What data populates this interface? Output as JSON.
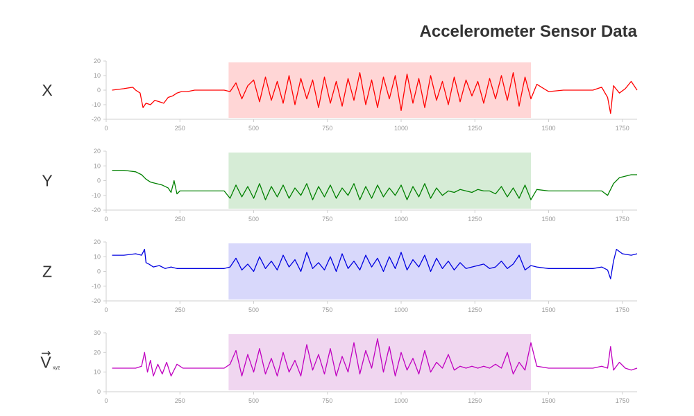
{
  "title": "Accelerometer Sensor Data",
  "chart_data": [
    {
      "type": "line",
      "ylabel": "X",
      "color": "#ff0000",
      "highlight_color": "#ffd6d6",
      "highlight_x": [
        415,
        1440
      ],
      "xlim": [
        0,
        1800
      ],
      "ylim": [
        -20,
        20
      ],
      "xticks": [
        0,
        250,
        500,
        750,
        1000,
        1250,
        1500,
        1750
      ],
      "yticks": [
        20,
        10,
        0,
        -10,
        -20
      ],
      "series": [
        {
          "x": [
            20,
            60,
            90,
            100,
            115,
            125,
            135,
            150,
            165,
            180,
            195,
            210,
            225,
            240,
            255,
            275,
            300,
            350,
            400,
            420,
            440,
            460,
            480,
            500,
            520,
            540,
            560,
            580,
            600,
            620,
            640,
            660,
            680,
            700,
            720,
            740,
            760,
            780,
            800,
            820,
            840,
            860,
            880,
            900,
            920,
            940,
            960,
            980,
            1000,
            1020,
            1040,
            1060,
            1080,
            1100,
            1120,
            1140,
            1160,
            1180,
            1200,
            1220,
            1240,
            1260,
            1280,
            1300,
            1320,
            1340,
            1360,
            1380,
            1400,
            1420,
            1440,
            1460,
            1500,
            1550,
            1600,
            1650,
            1680,
            1700,
            1710,
            1720,
            1740,
            1760,
            1780,
            1800
          ],
          "values": [
            0,
            1,
            2,
            0,
            -2,
            -12,
            -9,
            -10,
            -7,
            -8,
            -9,
            -5,
            -4,
            -2,
            -1,
            -1,
            0,
            0,
            0,
            -1,
            5,
            -6,
            3,
            7,
            -8,
            9,
            -7,
            6,
            -9,
            10,
            -10,
            8,
            -6,
            7,
            -12,
            9,
            -9,
            6,
            -11,
            8,
            -7,
            12,
            -10,
            7,
            -12,
            9,
            -6,
            10,
            -14,
            11,
            -9,
            8,
            -12,
            10,
            -7,
            6,
            -10,
            9,
            -8,
            7,
            -4,
            6,
            -9,
            8,
            -6,
            10,
            -7,
            12,
            -11,
            9,
            -6,
            4,
            -1,
            0,
            0,
            0,
            2,
            -5,
            -16,
            3,
            -2,
            1,
            6,
            0
          ]
        }
      ]
    },
    {
      "type": "line",
      "ylabel": "Y",
      "color": "#008000",
      "highlight_color": "#d6ecd6",
      "highlight_x": [
        415,
        1440
      ],
      "xlim": [
        0,
        1800
      ],
      "ylim": [
        -20,
        20
      ],
      "xticks": [
        0,
        250,
        500,
        750,
        1000,
        1250,
        1500,
        1750
      ],
      "yticks": [
        20,
        10,
        0,
        -10,
        -20
      ],
      "series": [
        {
          "x": [
            20,
            60,
            100,
            120,
            135,
            150,
            170,
            190,
            210,
            220,
            230,
            240,
            250,
            275,
            300,
            350,
            400,
            420,
            440,
            460,
            480,
            500,
            520,
            540,
            560,
            580,
            600,
            620,
            640,
            660,
            680,
            700,
            720,
            740,
            760,
            780,
            800,
            820,
            840,
            860,
            880,
            900,
            920,
            940,
            960,
            980,
            1000,
            1020,
            1040,
            1060,
            1080,
            1100,
            1120,
            1140,
            1160,
            1180,
            1200,
            1220,
            1240,
            1260,
            1280,
            1300,
            1320,
            1340,
            1360,
            1380,
            1400,
            1420,
            1440,
            1460,
            1500,
            1550,
            1600,
            1650,
            1680,
            1700,
            1720,
            1740,
            1760,
            1780,
            1800
          ],
          "values": [
            7,
            7,
            6,
            4,
            1,
            -1,
            -2,
            -3,
            -5,
            -8,
            0,
            -9,
            -7,
            -7,
            -7,
            -7,
            -7,
            -12,
            -3,
            -11,
            -4,
            -12,
            -2,
            -13,
            -4,
            -11,
            -3,
            -12,
            -5,
            -10,
            -2,
            -13,
            -4,
            -11,
            -3,
            -12,
            -5,
            -10,
            -2,
            -13,
            -4,
            -12,
            -3,
            -11,
            -5,
            -10,
            -3,
            -13,
            -4,
            -11,
            -2,
            -12,
            -5,
            -10,
            -7,
            -8,
            -6,
            -7,
            -8,
            -6,
            -7,
            -7,
            -9,
            -4,
            -11,
            -5,
            -12,
            -3,
            -13,
            -6,
            -7,
            -7,
            -7,
            -7,
            -7,
            -10,
            -2,
            2,
            3,
            4,
            4
          ]
        }
      ]
    },
    {
      "type": "line",
      "ylabel": "Z",
      "color": "#0000e0",
      "highlight_color": "#d8d8fb",
      "highlight_x": [
        415,
        1440
      ],
      "xlim": [
        0,
        1800
      ],
      "ylim": [
        -20,
        20
      ],
      "xticks": [
        0,
        250,
        500,
        750,
        1000,
        1250,
        1500,
        1750
      ],
      "yticks": [
        20,
        10,
        0,
        -10,
        -20
      ],
      "series": [
        {
          "x": [
            20,
            60,
            100,
            120,
            130,
            135,
            145,
            160,
            180,
            200,
            220,
            240,
            260,
            300,
            350,
            400,
            420,
            440,
            460,
            480,
            500,
            520,
            540,
            560,
            580,
            600,
            620,
            640,
            660,
            680,
            700,
            720,
            740,
            760,
            780,
            800,
            820,
            840,
            860,
            880,
            900,
            920,
            940,
            960,
            980,
            1000,
            1020,
            1040,
            1060,
            1080,
            1100,
            1120,
            1140,
            1160,
            1180,
            1200,
            1220,
            1240,
            1260,
            1280,
            1300,
            1320,
            1340,
            1360,
            1380,
            1400,
            1420,
            1440,
            1460,
            1500,
            1550,
            1600,
            1650,
            1680,
            1700,
            1710,
            1720,
            1730,
            1750,
            1780,
            1800
          ],
          "values": [
            11,
            11,
            12,
            11,
            15,
            6,
            5,
            3,
            4,
            2,
            3,
            2,
            2,
            2,
            2,
            2,
            3,
            9,
            1,
            5,
            0,
            10,
            2,
            7,
            1,
            11,
            3,
            8,
            0,
            13,
            2,
            6,
            1,
            10,
            0,
            12,
            2,
            7,
            1,
            11,
            3,
            9,
            0,
            10,
            2,
            13,
            1,
            8,
            3,
            11,
            0,
            9,
            2,
            7,
            1,
            6,
            2,
            3,
            4,
            5,
            2,
            3,
            7,
            2,
            5,
            11,
            1,
            4,
            3,
            2,
            2,
            2,
            2,
            3,
            1,
            -5,
            7,
            15,
            12,
            11,
            12
          ]
        }
      ]
    },
    {
      "type": "line",
      "ylabel": "V",
      "ylabel_sub": "xyz",
      "color": "#c000c0",
      "highlight_color": "#f0d6f0",
      "highlight_x": [
        415,
        1440
      ],
      "xlim": [
        0,
        1800
      ],
      "ylim": [
        0,
        30
      ],
      "xticks": [
        0,
        250,
        500,
        750,
        1000,
        1250,
        1500,
        1750
      ],
      "yticks": [
        30,
        20,
        10,
        0
      ],
      "series": [
        {
          "x": [
            20,
            60,
            100,
            120,
            130,
            140,
            150,
            160,
            175,
            190,
            205,
            220,
            240,
            260,
            300,
            350,
            400,
            420,
            440,
            460,
            480,
            500,
            520,
            540,
            560,
            580,
            600,
            620,
            640,
            660,
            680,
            700,
            720,
            740,
            760,
            780,
            800,
            820,
            840,
            860,
            880,
            900,
            920,
            940,
            960,
            980,
            1000,
            1020,
            1040,
            1060,
            1080,
            1100,
            1120,
            1140,
            1160,
            1180,
            1200,
            1220,
            1240,
            1260,
            1280,
            1300,
            1320,
            1340,
            1360,
            1380,
            1400,
            1420,
            1440,
            1460,
            1500,
            1550,
            1600,
            1650,
            1680,
            1700,
            1710,
            1720,
            1740,
            1760,
            1780,
            1800
          ],
          "values": [
            12,
            12,
            12,
            13,
            20,
            10,
            16,
            8,
            14,
            9,
            15,
            8,
            14,
            12,
            12,
            12,
            12,
            14,
            21,
            8,
            19,
            10,
            22,
            9,
            17,
            8,
            20,
            10,
            16,
            8,
            24,
            11,
            19,
            9,
            22,
            8,
            18,
            10,
            25,
            9,
            21,
            12,
            27,
            10,
            23,
            8,
            20,
            11,
            17,
            9,
            21,
            10,
            15,
            12,
            19,
            11,
            13,
            12,
            13,
            12,
            13,
            12,
            14,
            12,
            20,
            9,
            15,
            11,
            25,
            13,
            12,
            12,
            12,
            12,
            13,
            12,
            23,
            11,
            15,
            12,
            11,
            12
          ]
        }
      ]
    }
  ]
}
